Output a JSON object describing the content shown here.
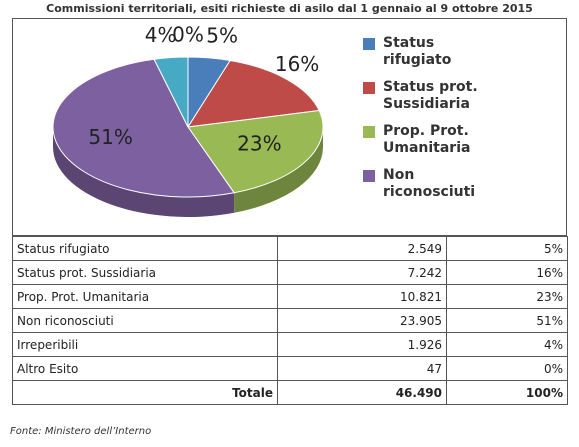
{
  "title": "Commissioni territoriali, esiti richieste di asilo dal 1 gennaio al 9 ottobre 2015",
  "chart_data": {
    "type": "pie",
    "categories": [
      "Status rifugiato",
      "Status prot. Sussidiaria",
      "Prop. Prot. Umanitaria",
      "Non riconosciuti",
      "Irreperibili",
      "Altro Esito"
    ],
    "values": [
      5,
      16,
      23,
      51,
      4,
      0
    ],
    "value_labels": [
      "5%",
      "16%",
      "23%",
      "51%",
      "4%",
      "0%"
    ],
    "colors": [
      "#4a7ebb",
      "#be4b48",
      "#98b954",
      "#7d60a0",
      "#46aac5",
      "#f59d56"
    ],
    "in_legend": [
      true,
      true,
      true,
      true,
      false,
      false
    ],
    "legend": "right"
  },
  "table": {
    "rows": [
      [
        "Status rifugiato",
        "2.549",
        "5%"
      ],
      [
        "Status prot. Sussidiaria",
        "7.242",
        "16%"
      ],
      [
        "Prop. Prot. Umanitaria",
        "10.821",
        "23%"
      ],
      [
        "Non riconosciuti",
        "23.905",
        "51%"
      ],
      [
        "Irreperibili",
        "1.926",
        "4%"
      ],
      [
        "Altro Esito",
        "47",
        "0%"
      ],
      [
        "Totale",
        "46.490",
        "100%"
      ]
    ]
  },
  "source": "Fonte: Ministero dell’Interno"
}
